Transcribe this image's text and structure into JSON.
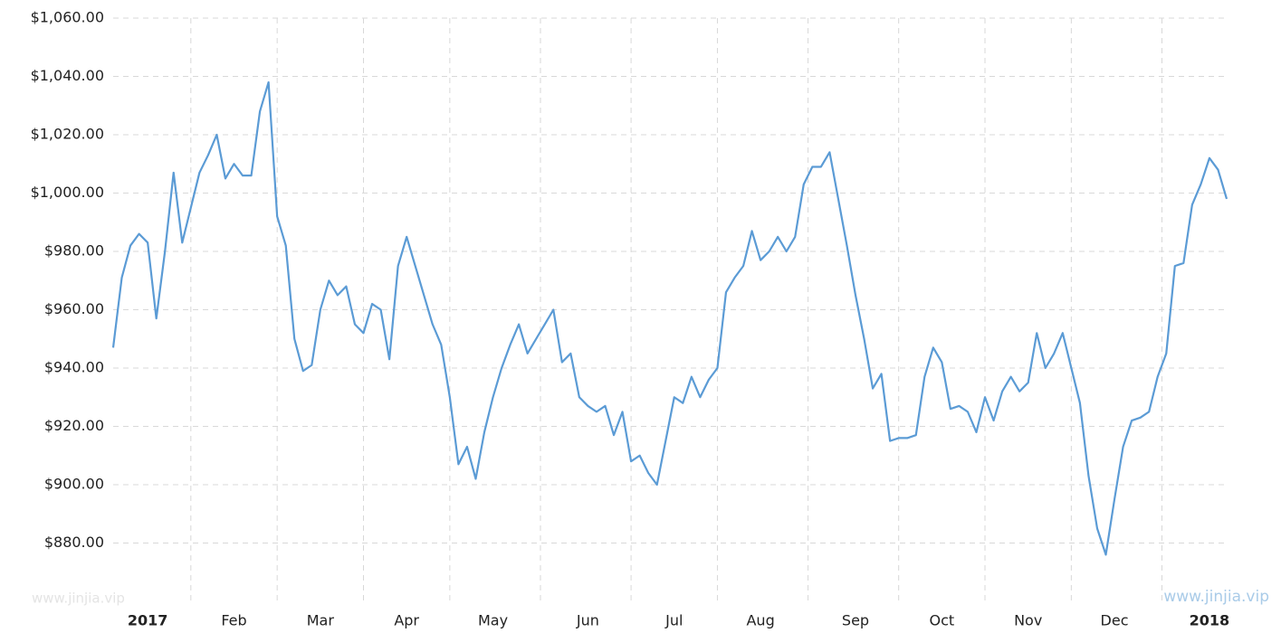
{
  "chart_data": {
    "type": "line",
    "categories": [
      null,
      null,
      null,
      null,
      "2017",
      null,
      null,
      null,
      null,
      null,
      null,
      null,
      null,
      null,
      "Feb",
      null,
      null,
      null,
      null,
      null,
      null,
      null,
      null,
      null,
      "Mar",
      null,
      null,
      null,
      null,
      null,
      null,
      null,
      null,
      null,
      "Apr",
      null,
      null,
      null,
      null,
      null,
      null,
      null,
      null,
      null,
      "May",
      null,
      null,
      null,
      null,
      null,
      null,
      null,
      null,
      null,
      null,
      "Jun",
      null,
      null,
      null,
      null,
      null,
      null,
      null,
      null,
      null,
      "Jul",
      null,
      null,
      null,
      null,
      null,
      null,
      null,
      null,
      null,
      "Aug",
      null,
      null,
      null,
      null,
      null,
      null,
      null,
      null,
      null,
      null,
      "Sep",
      null,
      null,
      null,
      null,
      null,
      null,
      null,
      null,
      null,
      "Oct",
      null,
      null,
      null,
      null,
      null,
      null,
      null,
      null,
      null,
      "Nov",
      null,
      null,
      null,
      null,
      null,
      null,
      null,
      null,
      null,
      "Dec",
      null,
      null,
      null,
      null,
      null,
      null,
      null,
      null,
      null,
      null,
      "2018",
      null,
      null
    ],
    "values": [
      947,
      971,
      982,
      986,
      983,
      957,
      980,
      1007,
      983,
      995,
      1007,
      1013,
      1020,
      1005,
      1010,
      1006,
      1006,
      1028,
      1038,
      992,
      982,
      950,
      939,
      941,
      960,
      970,
      965,
      968,
      955,
      952,
      962,
      960,
      943,
      975,
      985,
      975,
      965,
      955,
      948,
      930,
      907,
      913,
      902,
      918,
      930,
      940,
      948,
      955,
      945,
      950,
      955,
      960,
      942,
      945,
      930,
      927,
      925,
      927,
      917,
      925,
      908,
      910,
      904,
      900,
      915,
      930,
      928,
      937,
      930,
      936,
      940,
      966,
      971,
      975,
      987,
      977,
      980,
      985,
      980,
      985,
      1003,
      1009,
      1009,
      1014,
      998,
      982,
      965,
      950,
      933,
      938,
      915,
      916,
      916,
      917,
      937,
      947,
      942,
      926,
      927,
      925,
      918,
      930,
      922,
      932,
      937,
      932,
      935,
      952,
      940,
      945,
      952,
      940,
      928,
      903,
      885,
      876,
      895,
      913,
      922,
      923,
      925,
      937,
      945,
      975,
      976,
      996,
      1003,
      1012,
      1008,
      998
    ],
    "color": "#5b9bd5",
    "ylim": [
      860,
      1060
    ],
    "yticks": [
      {
        "value": 880,
        "label": "$880.00"
      },
      {
        "value": 900,
        "label": "$900.00"
      },
      {
        "value": 920,
        "label": "$920.00"
      },
      {
        "value": 940,
        "label": "$940.00"
      },
      {
        "value": 960,
        "label": "$960.00"
      },
      {
        "value": 980,
        "label": "$980.00"
      },
      {
        "value": 1000,
        "label": "$1,000.00"
      },
      {
        "value": 1020,
        "label": "$1,020.00"
      },
      {
        "value": 1040,
        "label": "$1,040.00"
      },
      {
        "value": 1060,
        "label": "$1,060.00"
      }
    ],
    "grid": true,
    "watermarks": [
      "www.jinjia.vip",
      "www.jinjia.vip"
    ]
  }
}
